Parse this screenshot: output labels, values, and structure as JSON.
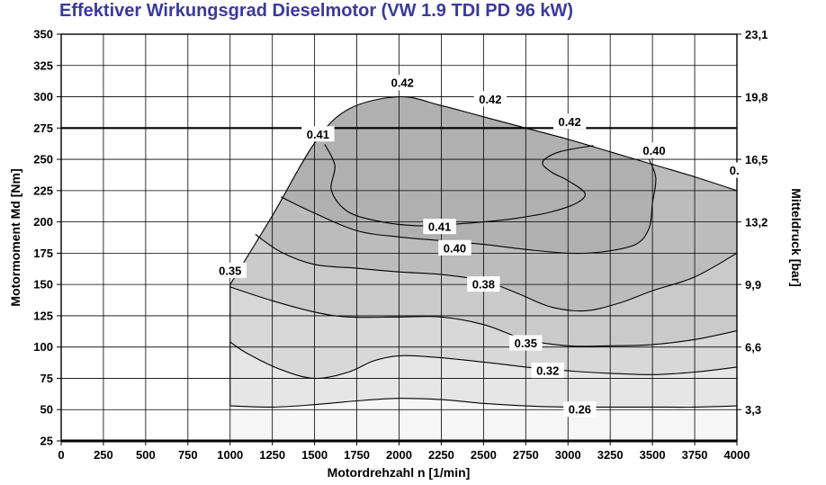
{
  "chart_data": {
    "type": "contour",
    "title": "Effektiver Wirkungsgrad Dieselmotor (VW 1.9 TDI PD 96 kW)",
    "xlabel": "Motordrehzahl n [1/min]",
    "ylabel": "Motormoment Md [Nm]",
    "y2label": "Mitteldruck [bar]",
    "xlim": [
      0,
      4000
    ],
    "ylim": [
      25,
      350
    ],
    "x_ticks": [
      "0",
      "250",
      "500",
      "750",
      "1000",
      "1250",
      "1500",
      "1750",
      "2000",
      "2250",
      "2500",
      "2750",
      "3000",
      "3250",
      "3500",
      "3750",
      "4000"
    ],
    "y_ticks": [
      "25",
      "50",
      "75",
      "100",
      "125",
      "150",
      "175",
      "200",
      "225",
      "250",
      "275",
      "300",
      "325",
      "350"
    ],
    "y2_ticks": [
      {
        "torque": 50,
        "label": "3,3"
      },
      {
        "torque": 100,
        "label": "6,6"
      },
      {
        "torque": 150,
        "label": "9,9"
      },
      {
        "torque": 200,
        "label": "13,2"
      },
      {
        "torque": 250,
        "label": "16,5"
      },
      {
        "torque": 300,
        "label": "19,8"
      },
      {
        "torque": 350,
        "label": "23,1"
      }
    ],
    "grid": true,
    "reference_line_torque": 275,
    "full_load_curve": [
      [
        1000,
        150
      ],
      [
        1250,
        205
      ],
      [
        1500,
        263
      ],
      [
        1700,
        290
      ],
      [
        2000,
        300
      ],
      [
        2250,
        293
      ],
      [
        2500,
        284
      ],
      [
        2750,
        275
      ],
      [
        3000,
        266
      ],
      [
        3250,
        256
      ],
      [
        3500,
        246
      ],
      [
        3750,
        236
      ],
      [
        4000,
        225
      ]
    ],
    "region_colors": [
      "#f6f6f6",
      "#e6e6e6",
      "#d8d8d8",
      "#cacaca",
      "#bcbcbc",
      "#b0b0b0"
    ],
    "contours": [
      {
        "level": "0.26",
        "points": [
          [
            1000,
            53
          ],
          [
            1250,
            52
          ],
          [
            1500,
            54
          ],
          [
            1750,
            57
          ],
          [
            2000,
            59
          ],
          [
            2250,
            58
          ],
          [
            2500,
            55
          ],
          [
            2750,
            53
          ],
          [
            3000,
            52
          ],
          [
            3250,
            52
          ],
          [
            3500,
            52
          ],
          [
            3750,
            52
          ],
          [
            4000,
            53
          ]
        ]
      },
      {
        "level": "0.32",
        "points": [
          [
            1000,
            104
          ],
          [
            1100,
            95
          ],
          [
            1300,
            82
          ],
          [
            1500,
            75
          ],
          [
            1700,
            80
          ],
          [
            1850,
            89
          ],
          [
            2000,
            93
          ],
          [
            2200,
            92
          ],
          [
            2500,
            88
          ],
          [
            2750,
            84
          ],
          [
            3000,
            81
          ],
          [
            3250,
            79
          ],
          [
            3500,
            78
          ],
          [
            3750,
            80
          ],
          [
            4000,
            84
          ]
        ]
      },
      {
        "level": "0.35",
        "points": [
          [
            1000,
            148
          ],
          [
            1250,
            137
          ],
          [
            1500,
            128
          ],
          [
            1700,
            124
          ],
          [
            2000,
            124
          ],
          [
            2250,
            124
          ],
          [
            2500,
            118
          ],
          [
            2750,
            106
          ],
          [
            3000,
            101
          ],
          [
            3250,
            101
          ],
          [
            3500,
            102
          ],
          [
            3750,
            106
          ],
          [
            4000,
            113
          ]
        ]
      },
      {
        "level": "0.38",
        "points": [
          [
            1150,
            190
          ],
          [
            1300,
            176
          ],
          [
            1500,
            166
          ],
          [
            1750,
            163
          ],
          [
            2000,
            160
          ],
          [
            2250,
            158
          ],
          [
            2500,
            153
          ],
          [
            2700,
            143
          ],
          [
            2900,
            132
          ],
          [
            3100,
            129
          ],
          [
            3300,
            135
          ],
          [
            3500,
            145
          ],
          [
            3750,
            156
          ],
          [
            4000,
            175
          ]
        ]
      },
      {
        "level": "0.40",
        "points": [
          [
            1300,
            220
          ],
          [
            1500,
            207
          ],
          [
            1750,
            193
          ],
          [
            2000,
            188
          ],
          [
            2250,
            185
          ],
          [
            2500,
            182
          ],
          [
            2750,
            178
          ],
          [
            3000,
            175
          ],
          [
            3200,
            176
          ],
          [
            3400,
            182
          ],
          [
            3480,
            195
          ],
          [
            3500,
            215
          ],
          [
            3520,
            235
          ],
          [
            3480,
            250
          ]
        ]
      },
      {
        "level": "0.41",
        "points": [
          [
            1560,
            262
          ],
          [
            1620,
            245
          ],
          [
            1600,
            225
          ],
          [
            1700,
            208
          ],
          [
            1900,
            200
          ],
          [
            2100,
            197
          ],
          [
            2300,
            198
          ],
          [
            2500,
            200
          ],
          [
            2700,
            203
          ],
          [
            2900,
            208
          ],
          [
            3050,
            215
          ],
          [
            3100,
            223
          ],
          [
            3000,
            233
          ],
          [
            2900,
            240
          ],
          [
            2850,
            248
          ],
          [
            2950,
            256
          ],
          [
            3150,
            261
          ]
        ]
      }
    ],
    "contour_labels": [
      {
        "text": "0.42",
        "x": 2020,
        "y": 311
      },
      {
        "text": "0.42",
        "x": 2540,
        "y": 298
      },
      {
        "text": "0.42",
        "x": 3010,
        "y": 280
      },
      {
        "text": "0.41",
        "x": 1520,
        "y": 270
      },
      {
        "text": "0.40",
        "x": 3510,
        "y": 257
      },
      {
        "text": "0.35",
        "x": 1000,
        "y": 161
      },
      {
        "text": "0.41",
        "x": 2240,
        "y": 196
      },
      {
        "text": "0.40",
        "x": 2330,
        "y": 179
      },
      {
        "text": "0.38",
        "x": 2500,
        "y": 150
      },
      {
        "text": "0.35",
        "x": 2750,
        "y": 103
      },
      {
        "text": "0.32",
        "x": 2880,
        "y": 81
      },
      {
        "text": "0.26",
        "x": 3070,
        "y": 50
      },
      {
        "text": "0.",
        "x": 3985,
        "y": 241
      }
    ]
  }
}
